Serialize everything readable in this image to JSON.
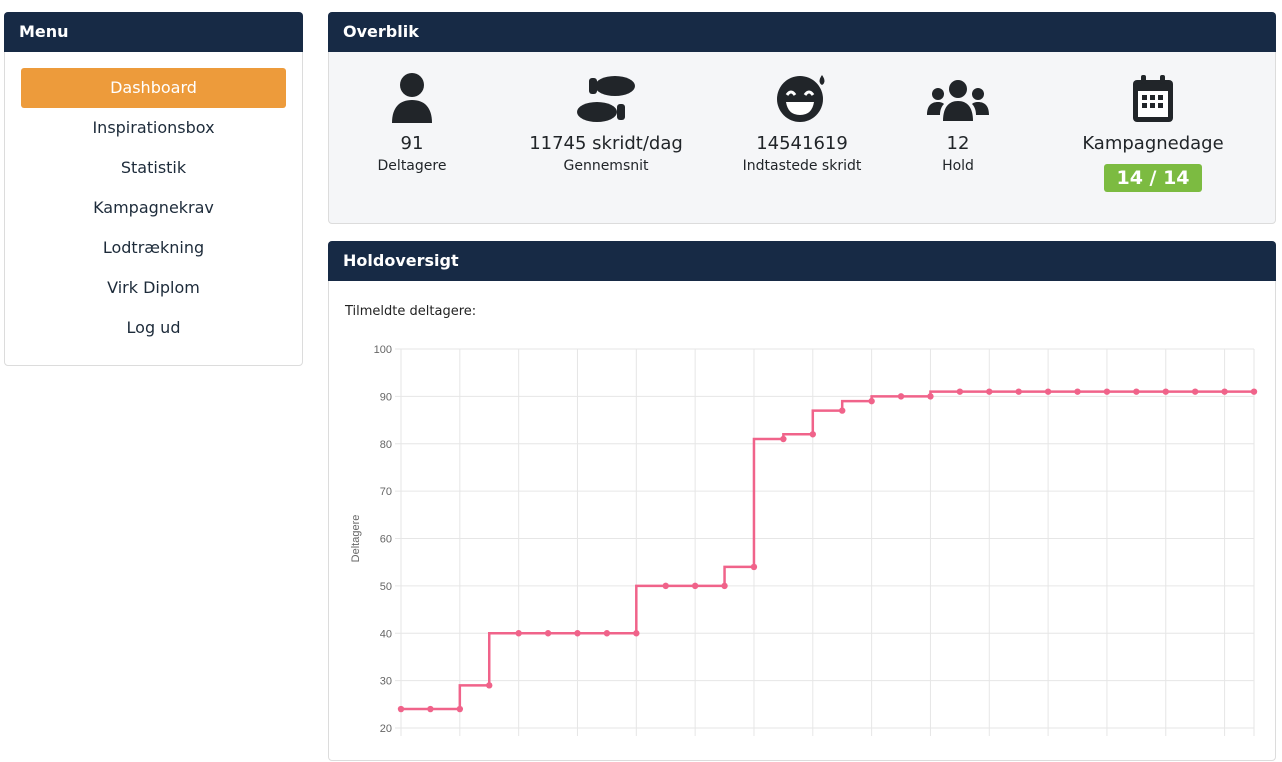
{
  "menu": {
    "title": "Menu",
    "items": [
      {
        "label": "Dashboard",
        "active": true
      },
      {
        "label": "Inspirationsbox"
      },
      {
        "label": "Statistik"
      },
      {
        "label": "Kampagnekrav"
      },
      {
        "label": "Lodtrækning"
      },
      {
        "label": "Virk Diplom"
      },
      {
        "label": "Log ud"
      }
    ]
  },
  "overview": {
    "title": "Overblik",
    "stats": [
      {
        "icon": "user-icon",
        "value": "91",
        "label": "Deltagere"
      },
      {
        "icon": "footprints-icon",
        "value": "11745 skridt/dag",
        "label": "Gennemsnit"
      },
      {
        "icon": "grin-sweat-icon",
        "value": "14541619",
        "label": "Indtastede skridt"
      },
      {
        "icon": "users-icon",
        "value": "12",
        "label": "Hold"
      },
      {
        "icon": "calendar-icon",
        "value": "Kampagnedage",
        "badge": "14 / 14"
      }
    ]
  },
  "teams": {
    "title": "Holdoversigt",
    "subtitle": "Tilmeldte deltagere:"
  },
  "colors": {
    "header": "#172a45",
    "accent": "#ed9b3b",
    "badge": "#7cbb41",
    "line": "#f0638a"
  },
  "chart_data": {
    "type": "line",
    "stepped": true,
    "ylabel": "Deltagere",
    "ylim": [
      20,
      100
    ],
    "yticks": [
      20,
      30,
      40,
      50,
      60,
      70,
      80,
      90,
      100
    ],
    "grid": true,
    "values": [
      24,
      24,
      24,
      29,
      40,
      40,
      40,
      40,
      40,
      50,
      50,
      50,
      54,
      81,
      82,
      87,
      89,
      90,
      90,
      91,
      91,
      91,
      91,
      91,
      91,
      91,
      91,
      91,
      91,
      91
    ]
  }
}
